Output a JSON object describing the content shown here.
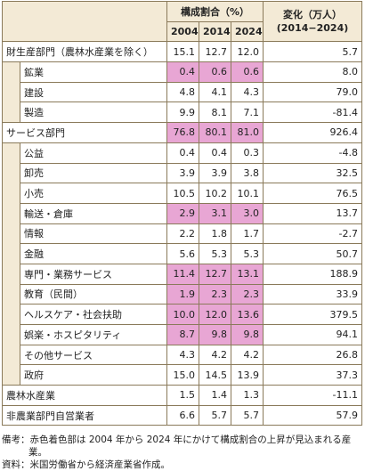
{
  "header": {
    "share": "構成割合（%）",
    "change": "変化（万人）",
    "change_period": "(2014−2024)",
    "years": [
      "2004",
      "2014",
      "2024"
    ]
  },
  "rows": [
    {
      "label": "財生産部門（農林水産業を除く）",
      "values": [
        "15.1",
        "12.7",
        "12.0",
        "5.7"
      ],
      "highlight": false,
      "children": 3
    },
    {
      "label": "鉱業",
      "values": [
        "0.4",
        "0.6",
        "0.6",
        "8.0"
      ],
      "highlight": true,
      "indent": true
    },
    {
      "label": "建設",
      "values": [
        "4.8",
        "4.1",
        "4.3",
        "79.0"
      ],
      "highlight": false,
      "indent": true
    },
    {
      "label": "製造",
      "values": [
        "9.9",
        "8.1",
        "7.1",
        "-81.4"
      ],
      "highlight": false,
      "indent": true
    },
    {
      "label": "サービス部門",
      "values": [
        "76.8",
        "80.1",
        "81.0",
        "926.4"
      ],
      "highlight": true,
      "children": 12
    },
    {
      "label": "公益",
      "values": [
        "0.4",
        "0.4",
        "0.3",
        "-4.8"
      ],
      "highlight": false,
      "indent": true
    },
    {
      "label": "卸売",
      "values": [
        "3.9",
        "3.9",
        "3.8",
        "32.5"
      ],
      "highlight": false,
      "indent": true
    },
    {
      "label": "小売",
      "values": [
        "10.5",
        "10.2",
        "10.1",
        "76.5"
      ],
      "highlight": false,
      "indent": true
    },
    {
      "label": "輸送・倉庫",
      "values": [
        "2.9",
        "3.1",
        "3.0",
        "13.7"
      ],
      "highlight": true,
      "indent": true
    },
    {
      "label": "情報",
      "values": [
        "2.2",
        "1.8",
        "1.7",
        "-2.7"
      ],
      "highlight": false,
      "indent": true
    },
    {
      "label": "金融",
      "values": [
        "5.6",
        "5.3",
        "5.3",
        "50.7"
      ],
      "highlight": false,
      "indent": true
    },
    {
      "label": "専門・業務サービス",
      "values": [
        "11.4",
        "12.7",
        "13.1",
        "188.9"
      ],
      "highlight": true,
      "indent": true
    },
    {
      "label": "教育（民間）",
      "values": [
        "1.9",
        "2.3",
        "2.3",
        "33.9"
      ],
      "highlight": true,
      "indent": true
    },
    {
      "label": "ヘルスケア・社会扶助",
      "values": [
        "10.0",
        "12.0",
        "13.6",
        "379.5"
      ],
      "highlight": true,
      "indent": true
    },
    {
      "label": "娯楽・ホスピタリティ",
      "values": [
        "8.7",
        "9.8",
        "9.8",
        "94.1"
      ],
      "highlight": true,
      "indent": true
    },
    {
      "label": "その他サービス",
      "values": [
        "4.3",
        "4.2",
        "4.2",
        "26.8"
      ],
      "highlight": false,
      "indent": true
    },
    {
      "label": "政府",
      "values": [
        "15.0",
        "14.5",
        "13.9",
        "37.3"
      ],
      "highlight": false,
      "indent": true
    },
    {
      "label": "農林水産業",
      "values": [
        "1.5",
        "1.4",
        "1.3",
        "-11.1"
      ],
      "highlight": false
    },
    {
      "label": "非農業部門自営業者",
      "values": [
        "6.6",
        "5.7",
        "5.7",
        "57.9"
      ],
      "highlight": false
    }
  ],
  "notes": [
    "備考：赤色着色部は 2004 年から 2024 年にかけて構成割合の上昇が見込まれる産業。",
    "資料：米国労働省から経済産業省作成。"
  ]
}
